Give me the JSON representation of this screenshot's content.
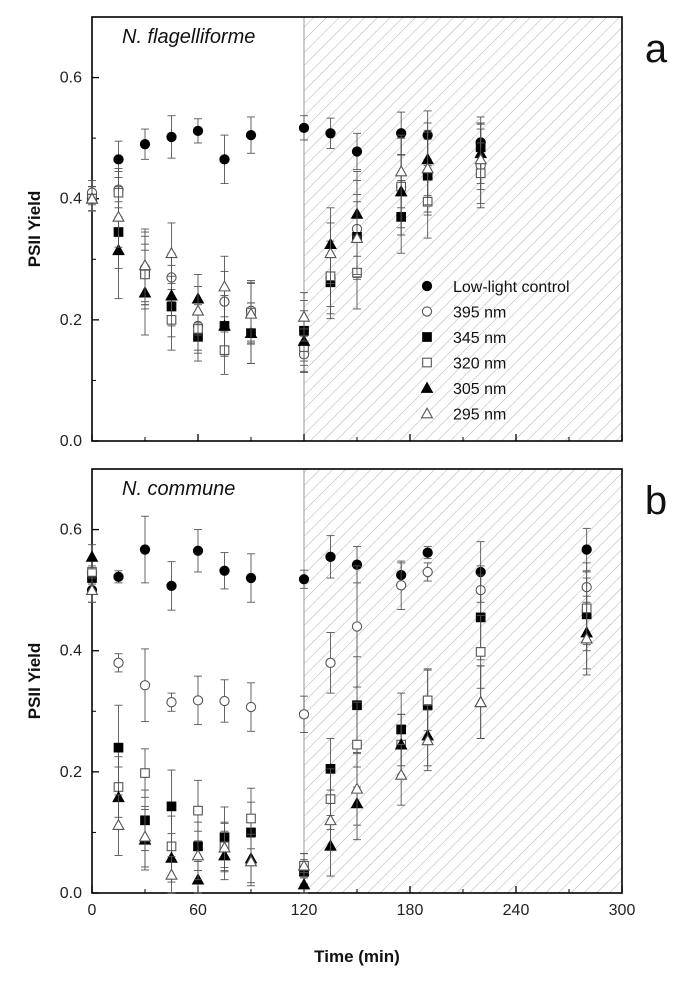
{
  "chart_data": [
    {
      "type": "scatter",
      "panel_letter": "a",
      "title": "N. flagelliforme",
      "xlabel": "Time (min)",
      "ylabel": "PSII Yield",
      "xlim": [
        0,
        300
      ],
      "ylim": [
        0,
        0.7
      ],
      "xticks": [
        "0",
        "60",
        "120",
        "180",
        "240",
        "300"
      ],
      "yticks": [
        "0.0",
        "0.2",
        "0.4",
        "0.6"
      ],
      "shaded_region": [
        120,
        300
      ],
      "legend": {
        "position": "right-middle",
        "entries": [
          "Low-light control",
          "395 nm",
          "345 nm",
          "320 nm",
          "305 nm",
          "295 nm"
        ]
      },
      "series": [
        {
          "name": "Low-light control",
          "marker": "circle-filled",
          "x": [
            0,
            15,
            30,
            45,
            60,
            75,
            90,
            120,
            135,
            150,
            175,
            190,
            220
          ],
          "y": [
            0.4,
            0.465,
            0.49,
            0.502,
            0.512,
            0.465,
            0.505,
            0.517,
            0.508,
            0.478,
            0.508,
            0.505,
            0.493
          ],
          "err": [
            0.02,
            0.03,
            0.025,
            0.035,
            0.02,
            0.04,
            0.03,
            0.02,
            0.025,
            0.03,
            0.035,
            0.04,
            0.03
          ]
        },
        {
          "name": "395 nm",
          "marker": "circle-open",
          "x": [
            0,
            15,
            30,
            45,
            60,
            75,
            90,
            120,
            135,
            150,
            175,
            190,
            220
          ],
          "y": [
            0.41,
            0.415,
            0.285,
            0.27,
            0.19,
            0.23,
            0.215,
            0.143,
            0.27,
            0.35,
            0.42,
            0.443,
            0.455
          ],
          "err": [
            0.02,
            0.03,
            0.06,
            0.04,
            0.04,
            0.05,
            0.05,
            0.03,
            0.06,
            0.08,
            0.08,
            0.07,
            0.07
          ]
        },
        {
          "name": "345 nm",
          "marker": "square-filled",
          "x": [
            0,
            15,
            30,
            45,
            60,
            75,
            90,
            120,
            135,
            150,
            175,
            190,
            220
          ],
          "y": [
            0.4,
            0.345,
            0.278,
            0.222,
            0.172,
            0.19,
            0.178,
            0.182,
            0.262,
            0.337,
            0.37,
            0.438,
            0.485
          ],
          "err": [
            0.02,
            0.06,
            0.06,
            0.05,
            0.04,
            0.05,
            0.05,
            0.05,
            0.06,
            0.07,
            0.06,
            0.06,
            0.05
          ]
        },
        {
          "name": "320 nm",
          "marker": "square-open",
          "x": [
            0,
            15,
            30,
            45,
            60,
            75,
            90,
            120,
            135,
            150,
            175,
            190,
            220
          ],
          "y": [
            0.4,
            0.41,
            0.275,
            0.2,
            0.185,
            0.15,
            0.212,
            0.155,
            0.272,
            0.278,
            0.42,
            0.395,
            0.442
          ],
          "err": [
            0.02,
            0.04,
            0.05,
            0.05,
            0.04,
            0.04,
            0.05,
            0.03,
            0.05,
            0.06,
            0.08,
            0.06,
            0.05
          ]
        },
        {
          "name": "305 nm",
          "marker": "triangle-filled",
          "x": [
            0,
            15,
            30,
            45,
            60,
            75,
            90,
            120,
            135,
            150,
            175,
            190,
            220
          ],
          "y": [
            0.4,
            0.315,
            0.245,
            0.24,
            0.235,
            0.19,
            0.178,
            0.165,
            0.325,
            0.375,
            0.412,
            0.465,
            0.475
          ],
          "err": [
            0.02,
            0.08,
            0.07,
            0.05,
            0.04,
            0.05,
            0.05,
            0.05,
            0.06,
            0.07,
            0.06,
            0.06,
            0.05
          ]
        },
        {
          "name": "295 nm",
          "marker": "triangle-open",
          "x": [
            0,
            15,
            30,
            45,
            60,
            75,
            90,
            120,
            135,
            150,
            175,
            190,
            220
          ],
          "y": [
            0.4,
            0.37,
            0.29,
            0.31,
            0.215,
            0.255,
            0.21,
            0.205,
            0.31,
            0.335,
            0.445,
            0.45,
            0.465
          ],
          "err": [
            0.02,
            0.05,
            0.06,
            0.05,
            0.04,
            0.05,
            0.05,
            0.04,
            0.05,
            0.06,
            0.06,
            0.06,
            0.05
          ]
        }
      ]
    },
    {
      "type": "scatter",
      "panel_letter": "b",
      "title": "N. commune",
      "xlabel": "Time (min)",
      "ylabel": "PSII Yield",
      "xlim": [
        0,
        300
      ],
      "ylim": [
        0,
        0.7
      ],
      "xticks": [
        "0",
        "60",
        "120",
        "180",
        "240",
        "300"
      ],
      "yticks": [
        "0.0",
        "0.2",
        "0.4",
        "0.6"
      ],
      "shaded_region": [
        120,
        300
      ],
      "series": [
        {
          "name": "Low-light control",
          "marker": "circle-filled",
          "x": [
            0,
            15,
            30,
            45,
            60,
            75,
            90,
            120,
            135,
            150,
            175,
            190,
            220,
            280
          ],
          "y": [
            0.5,
            0.522,
            0.567,
            0.507,
            0.565,
            0.532,
            0.52,
            0.518,
            0.555,
            0.542,
            0.525,
            0.562,
            0.53,
            0.567
          ],
          "err": [
            0.02,
            0.01,
            0.055,
            0.04,
            0.035,
            0.03,
            0.04,
            0.015,
            0.035,
            0.03,
            0.02,
            0.01,
            0.05,
            0.035
          ]
        },
        {
          "name": "395 nm",
          "marker": "circle-open",
          "x": [
            0,
            15,
            30,
            45,
            60,
            75,
            90,
            120,
            135,
            150,
            175,
            190,
            220,
            280
          ],
          "y": [
            0.53,
            0.38,
            0.343,
            0.315,
            0.318,
            0.317,
            0.307,
            0.295,
            0.38,
            0.44,
            0.508,
            0.53,
            0.5,
            0.505
          ],
          "err": [
            0.02,
            0.015,
            0.06,
            0.015,
            0.04,
            0.035,
            0.04,
            0.03,
            0.05,
            0.1,
            0.04,
            0.015,
            0.04,
            0.04
          ]
        },
        {
          "name": "345 nm",
          "marker": "square-filled",
          "x": [
            0,
            15,
            30,
            45,
            60,
            75,
            90,
            120,
            135,
            150,
            175,
            190,
            220,
            280
          ],
          "y": [
            0.52,
            0.24,
            0.12,
            0.143,
            0.077,
            0.092,
            0.1,
            0.035,
            0.205,
            0.31,
            0.27,
            0.31,
            0.455,
            0.46
          ],
          "err": [
            0.02,
            0.07,
            0.05,
            0.06,
            0.04,
            0.05,
            0.05,
            0.02,
            0.05,
            0.08,
            0.06,
            0.06,
            0.07,
            0.06
          ]
        },
        {
          "name": "320 nm",
          "marker": "square-open",
          "x": [
            0,
            15,
            30,
            45,
            60,
            75,
            90,
            120,
            135,
            150,
            175,
            190,
            220,
            280
          ],
          "y": [
            0.53,
            0.175,
            0.198,
            0.077,
            0.136,
            0.077,
            0.123,
            0.045,
            0.155,
            0.245,
            0.245,
            0.318,
            0.398,
            0.47
          ],
          "err": [
            0.02,
            0.05,
            0.04,
            0.05,
            0.05,
            0.04,
            0.05,
            0.02,
            0.05,
            0.07,
            0.05,
            0.05,
            0.06,
            0.06
          ]
        },
        {
          "name": "305 nm",
          "marker": "triangle-filled",
          "x": [
            0,
            15,
            30,
            45,
            60,
            75,
            90,
            120,
            135,
            150,
            175,
            190,
            220,
            280
          ],
          "y": [
            0.555,
            0.158,
            0.088,
            0.058,
            0.022,
            0.062,
            0.057,
            0.014,
            0.078,
            0.148,
            0.245,
            0.26,
            0.315,
            0.43
          ],
          "err": [
            0.02,
            0.05,
            0.05,
            0.04,
            0.03,
            0.04,
            0.04,
            0.02,
            0.05,
            0.06,
            0.05,
            0.05,
            0.06,
            0.06
          ]
        },
        {
          "name": "295 nm",
          "marker": "triangle-open",
          "x": [
            0,
            15,
            30,
            45,
            60,
            75,
            90,
            120,
            135,
            150,
            175,
            190,
            220,
            280
          ],
          "y": [
            0.5,
            0.112,
            0.093,
            0.03,
            0.062,
            0.075,
            0.052,
            0.045,
            0.12,
            0.172,
            0.195,
            0.252,
            0.315,
            0.42
          ],
          "err": [
            0.02,
            0.05,
            0.05,
            0.03,
            0.04,
            0.04,
            0.04,
            0.02,
            0.05,
            0.06,
            0.05,
            0.05,
            0.06,
            0.06
          ]
        }
      ]
    }
  ],
  "colors": {
    "filled_marker": "#000000",
    "open_marker": "#555555",
    "error_bar": "#555555",
    "hatch": "#b0b0b0",
    "axis": "#000000"
  }
}
